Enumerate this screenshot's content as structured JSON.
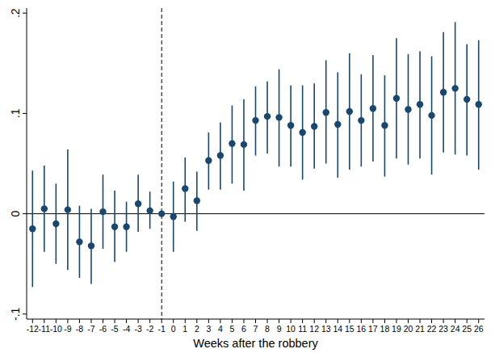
{
  "chart_data": {
    "type": "scatter",
    "x_label": "Weeks after the robbery",
    "x": [
      -12,
      -11,
      -10,
      -9,
      -8,
      -7,
      -6,
      -5,
      -4,
      -3,
      -2,
      -1,
      0,
      1,
      2,
      3,
      4,
      5,
      6,
      7,
      8,
      9,
      10,
      11,
      12,
      13,
      14,
      15,
      16,
      17,
      18,
      19,
      20,
      21,
      22,
      23,
      24,
      25,
      26
    ],
    "series": [
      {
        "color": "#1a476f",
        "marker": "circle",
        "values": [
          -0.015,
          0.005,
          -0.01,
          0.004,
          -0.028,
          -0.032,
          0.002,
          -0.013,
          -0.013,
          0.01,
          0.003,
          0,
          -0.003,
          0.025,
          0.013,
          0.053,
          0.058,
          0.07,
          0.069,
          0.093,
          0.097,
          0.096,
          0.088,
          0.081,
          0.087,
          0.101,
          0.089,
          0.102,
          0.093,
          0.105,
          0.088,
          0.115,
          0.104,
          0.109,
          0.098,
          0.121,
          0.125,
          0.114,
          0.109
        ],
        "ci_low": [
          -0.073,
          -0.038,
          -0.05,
          -0.056,
          -0.064,
          -0.07,
          -0.035,
          -0.048,
          -0.038,
          -0.018,
          -0.015,
          0,
          -0.038,
          -0.008,
          -0.017,
          0.024,
          0.024,
          0.03,
          0.023,
          0.058,
          0.06,
          0.047,
          0.047,
          0.034,
          0.045,
          0.05,
          0.036,
          0.044,
          0.047,
          0.052,
          0.037,
          0.055,
          0.049,
          0.055,
          0.039,
          0.061,
          0.059,
          0.058,
          0.044
        ],
        "ci_high": [
          0.043,
          0.048,
          0.03,
          0.064,
          0.008,
          0.005,
          0.039,
          0.023,
          0.012,
          0.039,
          0.022,
          0,
          0.032,
          0.056,
          0.042,
          0.081,
          0.091,
          0.108,
          0.114,
          0.127,
          0.132,
          0.144,
          0.128,
          0.128,
          0.13,
          0.153,
          0.141,
          0.16,
          0.139,
          0.158,
          0.138,
          0.175,
          0.159,
          0.162,
          0.157,
          0.181,
          0.191,
          0.169,
          0.173
        ]
      }
    ],
    "xlim": [
      -12.5,
      26.5
    ],
    "xticks": [
      -12,
      -11,
      -10,
      -9,
      -8,
      -7,
      -6,
      -5,
      -4,
      -3,
      -2,
      -1,
      0,
      1,
      2,
      3,
      4,
      5,
      6,
      7,
      8,
      9,
      10,
      11,
      12,
      13,
      14,
      15,
      16,
      17,
      18,
      19,
      20,
      21,
      22,
      23,
      24,
      25,
      26
    ],
    "ylim": [
      -0.105,
      0.205
    ],
    "yticks": [
      {
        "value": -0.1,
        "label": "-.1"
      },
      0,
      {
        "value": 0.1,
        "label": ".1"
      },
      {
        "value": 0.2,
        "label": ".2"
      }
    ],
    "vline_x": -1,
    "hline_y": 0,
    "grid": false
  }
}
